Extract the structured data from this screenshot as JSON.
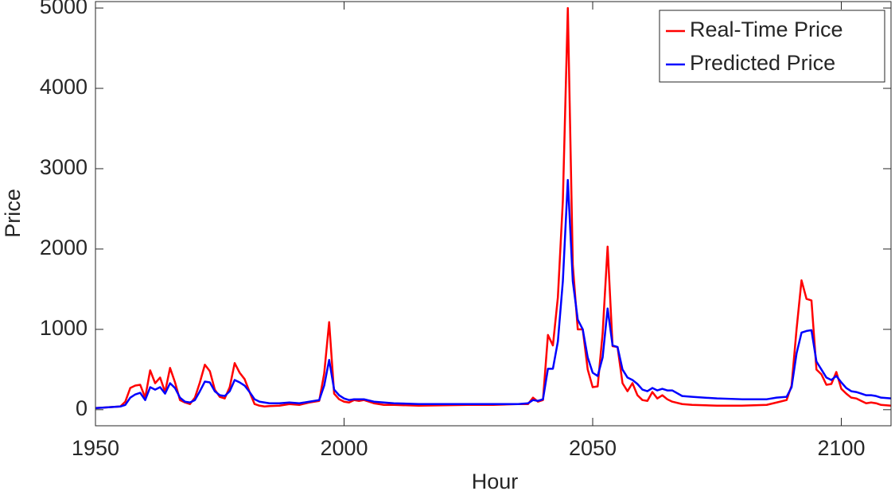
{
  "chart_data": {
    "type": "line",
    "xlabel": "Hour",
    "ylabel": "Price",
    "xlim": [
      1950,
      2110
    ],
    "xticks": [
      1950,
      2000,
      2050,
      2100
    ],
    "ylim": [
      -200,
      5080
    ],
    "yticks": [
      0,
      1000,
      2000,
      3000,
      4000,
      5000
    ],
    "legend": "top-right",
    "x": [
      1950,
      1955,
      1956,
      1957,
      1958,
      1959,
      1960,
      1961,
      1962,
      1963,
      1964,
      1965,
      1966,
      1967,
      1968,
      1969,
      1970,
      1971,
      1972,
      1973,
      1974,
      1975,
      1976,
      1977,
      1978,
      1979,
      1980,
      1981,
      1982,
      1983,
      1984,
      1985,
      1987,
      1989,
      1991,
      1993,
      1995,
      1996,
      1997,
      1998,
      1999,
      2000,
      2001,
      2002,
      2003,
      2004,
      2006,
      2008,
      2010,
      2015,
      2020,
      2025,
      2030,
      2035,
      2037,
      2038,
      2039,
      2040,
      2041,
      2042,
      2043,
      2044,
      2045,
      2046,
      2047,
      2048,
      2049,
      2050,
      2051,
      2052,
      2053,
      2054,
      2055,
      2056,
      2057,
      2058,
      2059,
      2060,
      2061,
      2062,
      2063,
      2064,
      2065,
      2066,
      2068,
      2070,
      2075,
      2080,
      2085,
      2087,
      2089,
      2090,
      2091,
      2092,
      2093,
      2094,
      2095,
      2096,
      2097,
      2098,
      2099,
      2100,
      2101,
      2102,
      2103,
      2104,
      2105,
      2106,
      2107,
      2108,
      2110
    ],
    "series": [
      {
        "name": "Real-Time Price",
        "color": "#ff0000",
        "values": [
          20,
          40,
          100,
          270,
          300,
          310,
          150,
          490,
          330,
          400,
          220,
          520,
          340,
          120,
          90,
          70,
          150,
          340,
          560,
          480,
          250,
          160,
          140,
          280,
          580,
          460,
          380,
          220,
          70,
          50,
          40,
          45,
          50,
          70,
          60,
          90,
          110,
          450,
          1090,
          200,
          130,
          100,
          90,
          120,
          110,
          120,
          80,
          60,
          60,
          50,
          55,
          60,
          60,
          70,
          70,
          150,
          100,
          120,
          930,
          800,
          1400,
          2600,
          5000,
          1800,
          1000,
          1000,
          500,
          280,
          290,
          950,
          2030,
          790,
          780,
          330,
          230,
          330,
          180,
          120,
          110,
          220,
          140,
          180,
          130,
          100,
          70,
          60,
          50,
          50,
          60,
          90,
          120,
          300,
          1000,
          1610,
          1380,
          1360,
          500,
          440,
          310,
          320,
          470,
          260,
          200,
          150,
          140,
          110,
          80,
          90,
          80,
          60,
          50
        ]
      },
      {
        "name": "Predicted Price",
        "color": "#0000ff",
        "values": [
          20,
          40,
          60,
          150,
          190,
          210,
          120,
          280,
          250,
          280,
          200,
          330,
          270,
          150,
          100,
          90,
          120,
          230,
          350,
          340,
          230,
          180,
          170,
          230,
          370,
          340,
          300,
          220,
          130,
          100,
          90,
          80,
          80,
          90,
          80,
          100,
          120,
          300,
          620,
          250,
          180,
          140,
          120,
          130,
          130,
          130,
          100,
          90,
          80,
          70,
          70,
          70,
          70,
          70,
          80,
          120,
          110,
          130,
          510,
          510,
          850,
          1600,
          2860,
          1600,
          1120,
          1000,
          650,
          460,
          420,
          650,
          1260,
          800,
          780,
          500,
          400,
          370,
          320,
          250,
          230,
          270,
          240,
          260,
          240,
          240,
          170,
          160,
          140,
          130,
          130,
          150,
          160,
          280,
          700,
          960,
          980,
          990,
          600,
          500,
          400,
          370,
          420,
          340,
          270,
          230,
          220,
          200,
          180,
          180,
          170,
          150,
          140
        ]
      }
    ]
  }
}
